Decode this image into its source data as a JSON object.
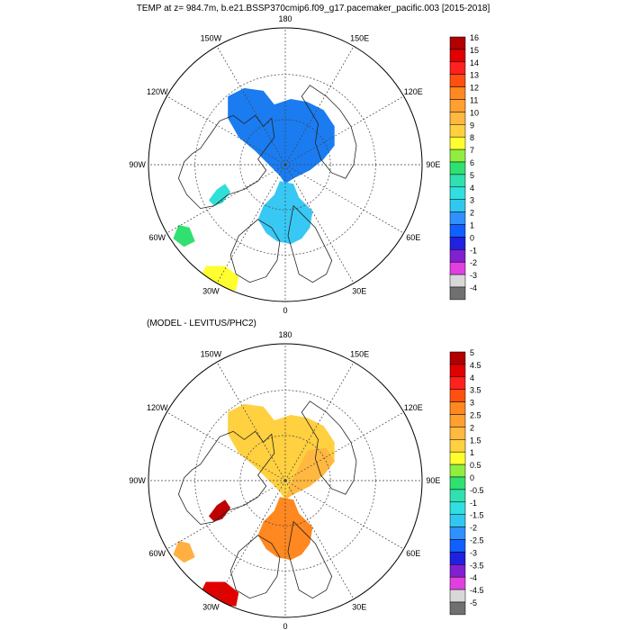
{
  "figure": {
    "title": "TEMP at z= 984.7m, b.e21.BSSP370cmip6.f09_g17.pacemaker_pacific.003 [2015-2018]"
  },
  "panels": [
    {
      "subtitle": "",
      "lon_labels": [
        "180",
        "150E",
        "120E",
        "90E",
        "60E",
        "30E",
        "0",
        "30W",
        "60W",
        "90W",
        "120W",
        "150W"
      ],
      "colorbar": {
        "labels": [
          "16",
          "15",
          "14",
          "13",
          "12",
          "11",
          "10",
          "9",
          "8",
          "7",
          "6",
          "5",
          "4",
          "3",
          "2",
          "1",
          "0",
          "-1",
          "-2",
          "-3",
          "-4"
        ],
        "colors": [
          "#b00000",
          "#e00000",
          "#ff2020",
          "#ff5010",
          "#ff8820",
          "#ffa030",
          "#ffb840",
          "#ffd040",
          "#ffff30",
          "#90ee40",
          "#30e070",
          "#30e0b0",
          "#30e0e0",
          "#30c8f0",
          "#3090ff",
          "#1060ff",
          "#2020e0",
          "#8020d0",
          "#e040e0",
          "#d8d8d8",
          "#707070"
        ]
      }
    },
    {
      "subtitle": "(MODEL - LEVITUS/PHC2)",
      "lon_labels": [
        "180",
        "150E",
        "120E",
        "90E",
        "60E",
        "30E",
        "0",
        "30W",
        "60W",
        "90W",
        "120W",
        "150W"
      ],
      "colorbar": {
        "labels": [
          "5",
          "4.5",
          "4",
          "3.5",
          "3",
          "2.5",
          "2",
          "1.5",
          "1",
          "0.5",
          "0",
          "-0.5",
          "-1",
          "-1.5",
          "-2",
          "-2.5",
          "-3",
          "-3.5",
          "-4",
          "-4.5",
          "-5"
        ],
        "colors": [
          "#b00000",
          "#e00000",
          "#ff2020",
          "#ff5010",
          "#ff8820",
          "#ffa030",
          "#ffb840",
          "#ffd040",
          "#ffff30",
          "#90ee40",
          "#30e070",
          "#30e0b0",
          "#30e0e0",
          "#30c8f0",
          "#3090ff",
          "#1060ff",
          "#2020e0",
          "#8020d0",
          "#e040e0",
          "#d8d8d8",
          "#707070"
        ]
      }
    }
  ],
  "fields": {
    "top_main": "#1a7cf0",
    "top_atlantic": "#38c8f4",
    "top_baffin": "#30e0d8",
    "top_labrador": "#30e070",
    "top_north_atlantic": "#ffff30",
    "bottom_main": "#ffd040",
    "bottom_eastern": "#ffb840",
    "bottom_atlantic": "#ff8820",
    "bottom_baffin": "#c00000",
    "bottom_labrador": "#ffb040",
    "bottom_north_atlantic": "#e00000"
  }
}
